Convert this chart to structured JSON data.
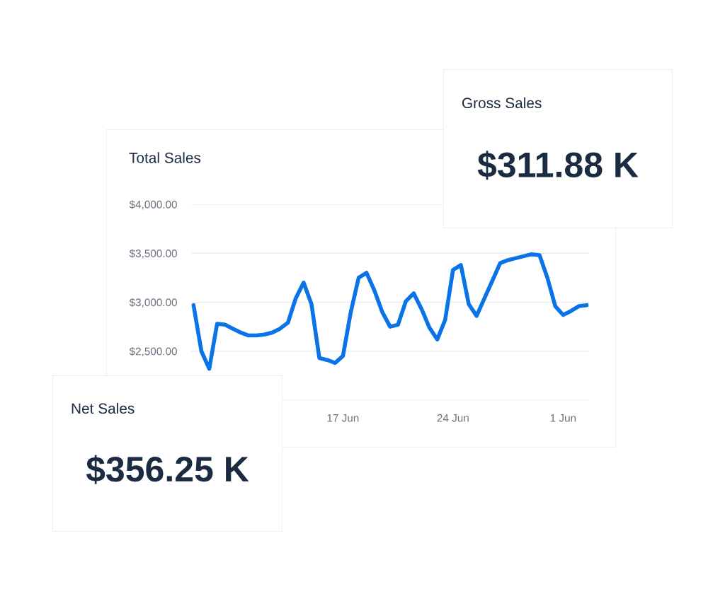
{
  "chart_data": [
    {
      "type": "other",
      "title": "Gross Sales",
      "annotations": [
        "$311.88 K"
      ]
    },
    {
      "type": "line",
      "title": "Total Sales",
      "color": "#0a73e8",
      "categories": [
        null,
        null,
        null,
        null,
        null,
        null,
        null,
        null,
        null,
        null,
        null,
        null,
        null,
        null,
        null,
        null,
        null,
        null,
        null,
        "17 Jun",
        null,
        null,
        null,
        null,
        null,
        null,
        null,
        null,
        null,
        null,
        null,
        null,
        null,
        "24 Jun",
        null,
        null,
        null,
        null,
        null,
        null,
        null,
        null,
        null,
        null,
        null,
        null,
        null,
        "1 Jun",
        null,
        null,
        null
      ],
      "values": [
        2970,
        2500,
        2320,
        2780,
        2770,
        2730,
        2690,
        2660,
        2660,
        2670,
        2690,
        2730,
        2790,
        3040,
        3200,
        2980,
        2430,
        2410,
        2380,
        2450,
        2900,
        3250,
        3300,
        3120,
        2900,
        2750,
        2770,
        3010,
        3090,
        2930,
        2740,
        2620,
        2820,
        3330,
        3380,
        2980,
        2860,
        3040,
        3220,
        3400,
        3430,
        3450,
        3470,
        3490,
        3480,
        3250,
        2960,
        2870,
        2910,
        2960,
        2970
      ],
      "ylim": [
        2000,
        4000
      ],
      "yticks": [
        {
          "value": 2000,
          "label": null
        },
        {
          "value": 2500,
          "label": "$2,500.00"
        },
        {
          "value": 3000,
          "label": "$3,000.00"
        },
        {
          "value": 3500,
          "label": "$3,500.00"
        },
        {
          "value": 4000,
          "label": "$4,000.00"
        }
      ],
      "grid": "y",
      "marker": "none",
      "line_style": "solid"
    },
    {
      "type": "other",
      "title": "Net Sales",
      "annotations": [
        "$356.25 K"
      ]
    }
  ]
}
